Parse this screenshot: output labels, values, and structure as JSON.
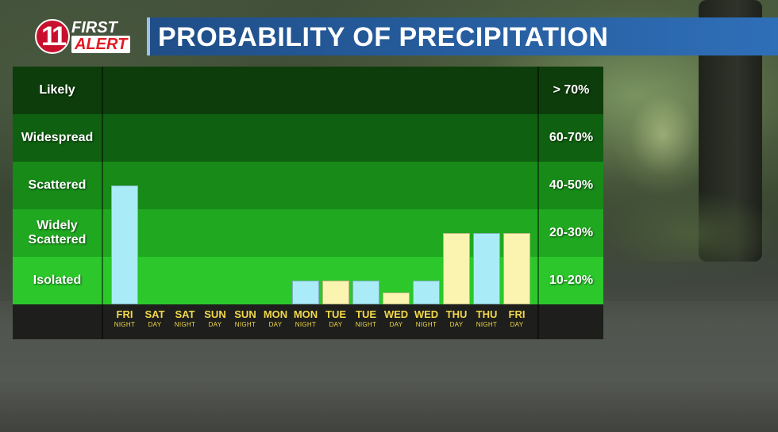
{
  "logo": {
    "number": "11",
    "first": "FIRST",
    "alert": "ALERT"
  },
  "title": "PROBABILITY OF PRECIPITATION",
  "colors": {
    "band_likely": "#0d3d0a",
    "band_widespread": "#0f6010",
    "band_scattered": "#178a18",
    "band_widely": "#20a820",
    "band_isolated": "#2bc72b",
    "night_bar": "#a9ecf7",
    "day_bar": "#fbf3b0",
    "tick_text": "#f2d84b"
  },
  "chart_data": {
    "type": "bar",
    "title": "PROBABILITY OF PRECIPITATION",
    "ylabels": [
      "Likely",
      "Widespread",
      "Scattered",
      "Widely Scattered",
      "Isolated"
    ],
    "percent_labels": [
      "> 70%",
      "60-70%",
      "40-50%",
      "20-30%",
      "10-20%"
    ],
    "ylim": [
      0,
      5
    ],
    "categories": [
      {
        "day": "FRI",
        "period": "NIGHT"
      },
      {
        "day": "SAT",
        "period": "DAY"
      },
      {
        "day": "SAT",
        "period": "NIGHT"
      },
      {
        "day": "SUN",
        "period": "DAY"
      },
      {
        "day": "SUN",
        "period": "NIGHT"
      },
      {
        "day": "MON",
        "period": "DAY"
      },
      {
        "day": "MON",
        "period": "NIGHT"
      },
      {
        "day": "TUE",
        "period": "DAY"
      },
      {
        "day": "TUE",
        "period": "NIGHT"
      },
      {
        "day": "WED",
        "period": "DAY"
      },
      {
        "day": "WED",
        "period": "NIGHT"
      },
      {
        "day": "THU",
        "period": "DAY"
      },
      {
        "day": "THU",
        "period": "NIGHT"
      },
      {
        "day": "FRI",
        "period": "DAY"
      }
    ],
    "values": [
      2.5,
      0,
      0,
      0,
      0,
      0,
      0.5,
      0.5,
      0.5,
      0.25,
      0.5,
      1.5,
      1.5,
      1.5
    ],
    "value_unit": "category bands (0 = none, 1 = Isolated, 2 = Widely Scattered, 3 = Scattered, 4 = Widespread, 5 = Likely)"
  }
}
